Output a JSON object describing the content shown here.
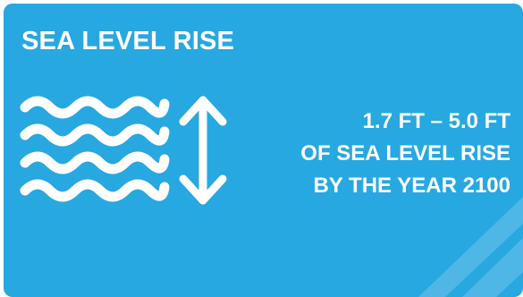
{
  "card": {
    "title": "SEA LEVEL RISE",
    "background_color": "#28a8e0",
    "text_color": "#ffffff",
    "icons": [
      "waves-icon",
      "up-down-arrow-icon"
    ],
    "stat": {
      "line1": "1.7 FT – 5.0 FT",
      "line2": "OF SEA LEVEL RISE",
      "line3": "BY THE YEAR 2100"
    }
  }
}
